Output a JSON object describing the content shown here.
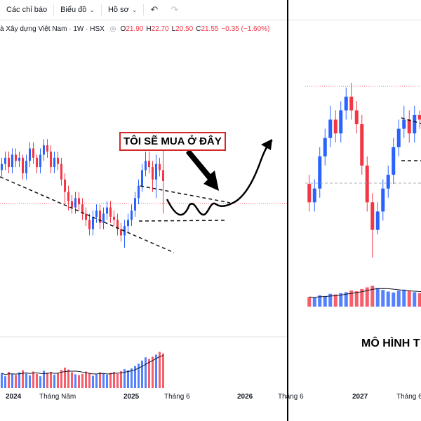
{
  "toolbar": {
    "indicators": "Các chỉ báo",
    "chart_type": "Biểu đồ",
    "profile": "Hồ sơ"
  },
  "legend": {
    "symbol": "à Xây dựng Việt Nam · 1W · HSX",
    "o_label": "O",
    "o_value": "21.90",
    "h_label": "H",
    "h_value": "22.70",
    "l_label": "L",
    "l_value": "20.50",
    "c_label": "C",
    "c_value": "21.55",
    "change": "−0.35 (−1.60%)"
  },
  "annotation": {
    "callout": "TÔI SẼ MUA Ở ĐÂY",
    "pattern_label": "MÔ HÌNH T"
  },
  "x_axis": [
    "2024",
    "Tháng Năm",
    "2025",
    "Tháng 6",
    "2026",
    "Tháng 6",
    "2027",
    "Tháng 6"
  ],
  "colors": {
    "up": "#2962ff",
    "down": "#f23645",
    "up_volume": "#2962ff",
    "down_volume": "#f23645",
    "annotation_border": "#d22a2a"
  },
  "chart_data": {
    "type": "candlestick",
    "panels": [
      {
        "name": "left",
        "price": {
          "open": [
            21.9,
            22.1,
            22.3,
            22.0,
            22.4,
            22.2,
            22.3,
            21.8,
            22.2,
            22.6,
            22.3,
            22.0,
            22.4,
            22.7,
            22.5,
            22.0,
            22.3,
            22.1,
            21.6,
            21.2,
            20.9,
            20.7,
            21.0,
            20.8,
            20.5,
            20.3,
            20.0,
            20.4,
            20.6,
            20.2,
            20.5,
            20.7,
            20.4,
            20.3,
            20.0,
            19.8,
            20.1,
            20.3,
            20.6,
            21.0,
            21.4,
            21.9,
            22.2,
            22.0,
            21.6,
            22.1,
            21.9
          ],
          "close": [
            22.1,
            22.3,
            22.0,
            22.4,
            22.2,
            22.3,
            21.8,
            22.2,
            22.6,
            22.3,
            22.0,
            22.4,
            22.7,
            22.5,
            22.0,
            22.3,
            22.1,
            21.6,
            21.2,
            20.9,
            20.7,
            21.0,
            20.8,
            20.5,
            20.3,
            20.0,
            20.4,
            20.6,
            20.2,
            20.5,
            20.7,
            20.4,
            20.3,
            20.0,
            19.8,
            20.1,
            20.3,
            20.6,
            21.0,
            21.4,
            21.9,
            22.2,
            22.0,
            21.6,
            22.1,
            21.9,
            21.55
          ],
          "high": [
            22.3,
            22.5,
            22.5,
            22.6,
            22.6,
            22.5,
            22.4,
            22.4,
            22.8,
            22.8,
            22.4,
            22.6,
            22.9,
            22.9,
            22.7,
            22.5,
            22.5,
            22.3,
            21.8,
            21.4,
            21.1,
            21.2,
            21.2,
            21.0,
            20.7,
            20.5,
            20.6,
            20.8,
            20.8,
            20.7,
            20.9,
            20.9,
            20.6,
            20.5,
            20.2,
            20.3,
            20.5,
            20.8,
            21.2,
            21.6,
            22.1,
            22.5,
            22.5,
            22.2,
            22.4,
            22.3,
            22.7
          ],
          "low": [
            21.7,
            21.9,
            21.8,
            21.8,
            22.0,
            22.0,
            21.6,
            21.6,
            22.0,
            22.1,
            21.8,
            21.8,
            22.2,
            22.3,
            21.8,
            21.8,
            21.9,
            21.4,
            20.8,
            20.6,
            20.5,
            20.5,
            20.6,
            20.3,
            20.1,
            19.8,
            19.8,
            20.2,
            20.0,
            20.0,
            20.3,
            20.2,
            20.1,
            19.8,
            19.6,
            19.4,
            19.9,
            20.1,
            20.4,
            20.8,
            21.2,
            21.7,
            21.8,
            21.2,
            21.0,
            21.7,
            20.5
          ]
        },
        "volume": [
          38,
          30,
          41,
          35,
          33,
          40,
          45,
          37,
          32,
          42,
          36,
          30,
          44,
          39,
          41,
          34,
          38,
          46,
          52,
          47,
          40,
          35,
          33,
          36,
          42,
          38,
          31,
          35,
          40,
          37,
          34,
          39,
          41,
          36,
          43,
          48,
          45,
          50,
          56,
          62,
          70,
          78,
          74,
          80,
          85,
          92,
          88
        ]
      },
      {
        "name": "right",
        "price": {
          "open": [
            21.0,
            20.6,
            20.9,
            21.6,
            22.0,
            22.4,
            22.1,
            22.6,
            22.9,
            22.6,
            22.3,
            21.4,
            20.6,
            20.0,
            20.4,
            20.9,
            21.2,
            21.8,
            22.2,
            22.4,
            22.1,
            22.5,
            22.4
          ],
          "close": [
            20.6,
            20.9,
            21.6,
            22.0,
            22.4,
            22.1,
            22.6,
            22.9,
            22.6,
            22.3,
            21.4,
            20.6,
            20.0,
            20.4,
            20.9,
            21.2,
            21.8,
            22.2,
            22.4,
            22.1,
            22.5,
            22.4,
            22.3
          ],
          "high": [
            21.2,
            21.1,
            21.8,
            22.2,
            22.7,
            22.6,
            22.8,
            23.1,
            23.2,
            22.8,
            22.5,
            21.6,
            20.8,
            20.6,
            21.1,
            21.4,
            22.0,
            22.4,
            22.7,
            22.6,
            22.7,
            22.6,
            22.5
          ],
          "low": [
            20.4,
            20.4,
            20.7,
            21.4,
            21.8,
            21.9,
            21.9,
            22.4,
            22.4,
            22.1,
            21.2,
            20.4,
            19.4,
            19.9,
            20.2,
            20.7,
            21.0,
            21.6,
            22.0,
            21.9,
            21.9,
            22.2,
            22.1
          ]
        },
        "volume": [
          30,
          28,
          35,
          33,
          40,
          38,
          42,
          45,
          50,
          48,
          55,
          60,
          65,
          58,
          52,
          47,
          44,
          50,
          53,
          49,
          45,
          42,
          40
        ]
      }
    ]
  }
}
